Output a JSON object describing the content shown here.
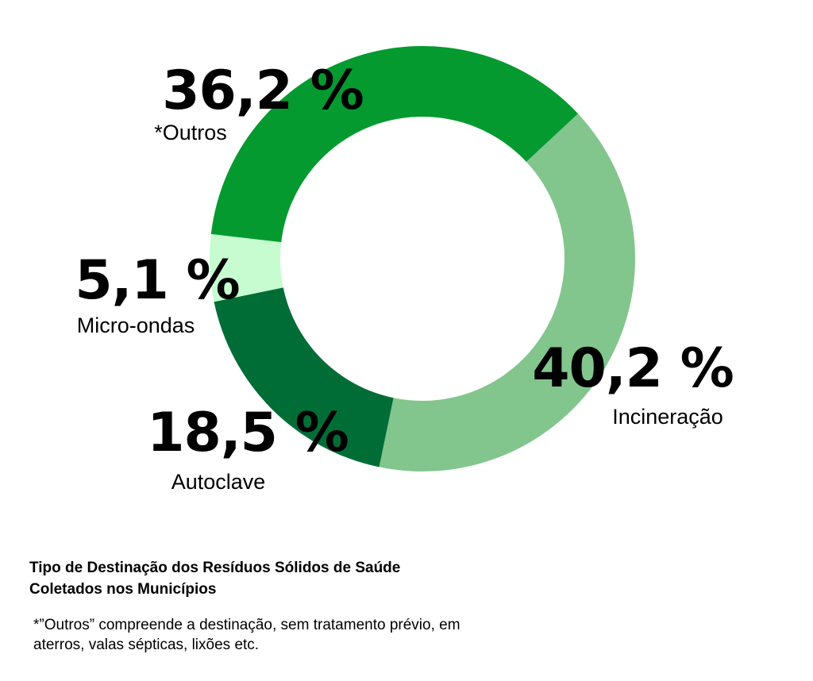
{
  "chart_data": {
    "type": "pie",
    "donut": true,
    "categories": [
      "Incineração",
      "Autoclave",
      "Micro-ondas",
      "*Outros"
    ],
    "values": [
      40.2,
      18.5,
      5.1,
      36.2
    ],
    "value_labels": [
      "40,2 %",
      "18,5 %",
      "5,1 %",
      "36,2 %"
    ],
    "colors": [
      "#82c68d",
      "#006d37",
      "#c6fccf",
      "#049a2f"
    ],
    "title": "Tipo de Destinação dos Resíduos Sólidos de Saúde Coletados nos Municípios",
    "legend": "none"
  },
  "caption": {
    "title": "Tipo de Destinação dos Resíduos Sólidos de Saúde Coletados nos Municípios",
    "note": "*”Outros” compreende a destinação, sem tratamento prévio, em aterros, valas sépticas, lixões etc."
  }
}
